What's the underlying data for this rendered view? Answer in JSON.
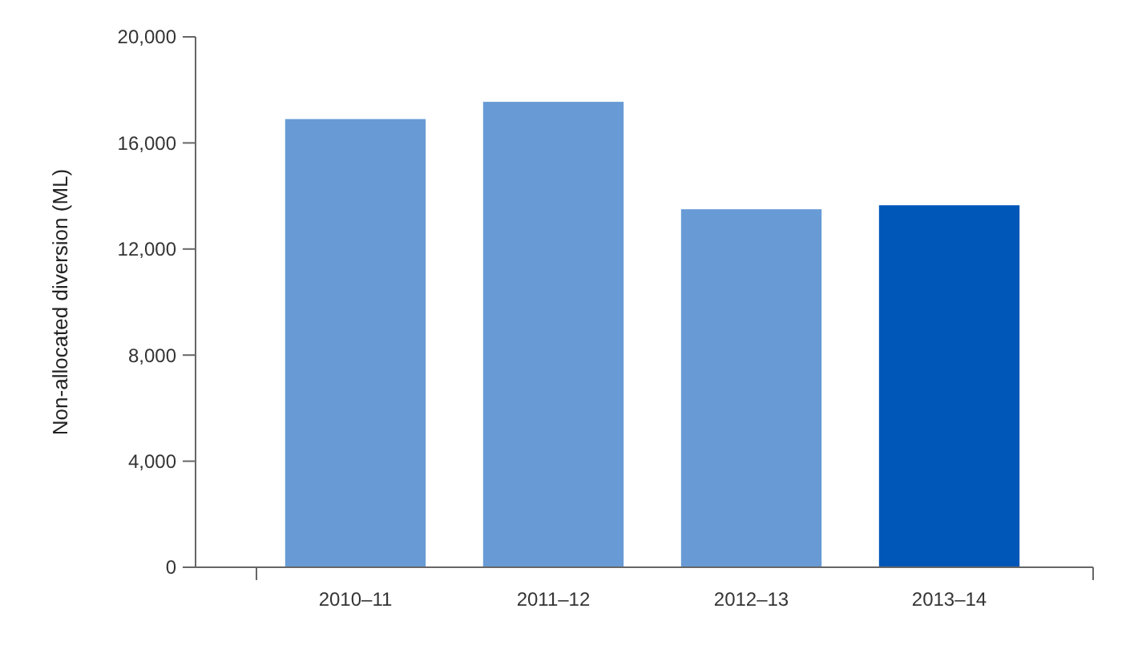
{
  "chart_data": {
    "type": "bar",
    "ylabel": "Non-allocated diversion (ML)",
    "categories": [
      "2010–11",
      "2011–12",
      "2012–13",
      "2013–14"
    ],
    "values": [
      16900,
      17550,
      13500,
      13650
    ],
    "colors": [
      "#689bd5",
      "#689bd5",
      "#689bd5",
      "#0057b8"
    ],
    "ylim": [
      0,
      20000
    ],
    "yticks": [
      {
        "value": 0,
        "label": "0"
      },
      {
        "value": 4000,
        "label": "4,000"
      },
      {
        "value": 8000,
        "label": "8,000"
      },
      {
        "value": 12000,
        "label": "12,000"
      },
      {
        "value": 16000,
        "label": "16,000"
      },
      {
        "value": 20000,
        "label": "20,000"
      }
    ],
    "grid": false
  }
}
